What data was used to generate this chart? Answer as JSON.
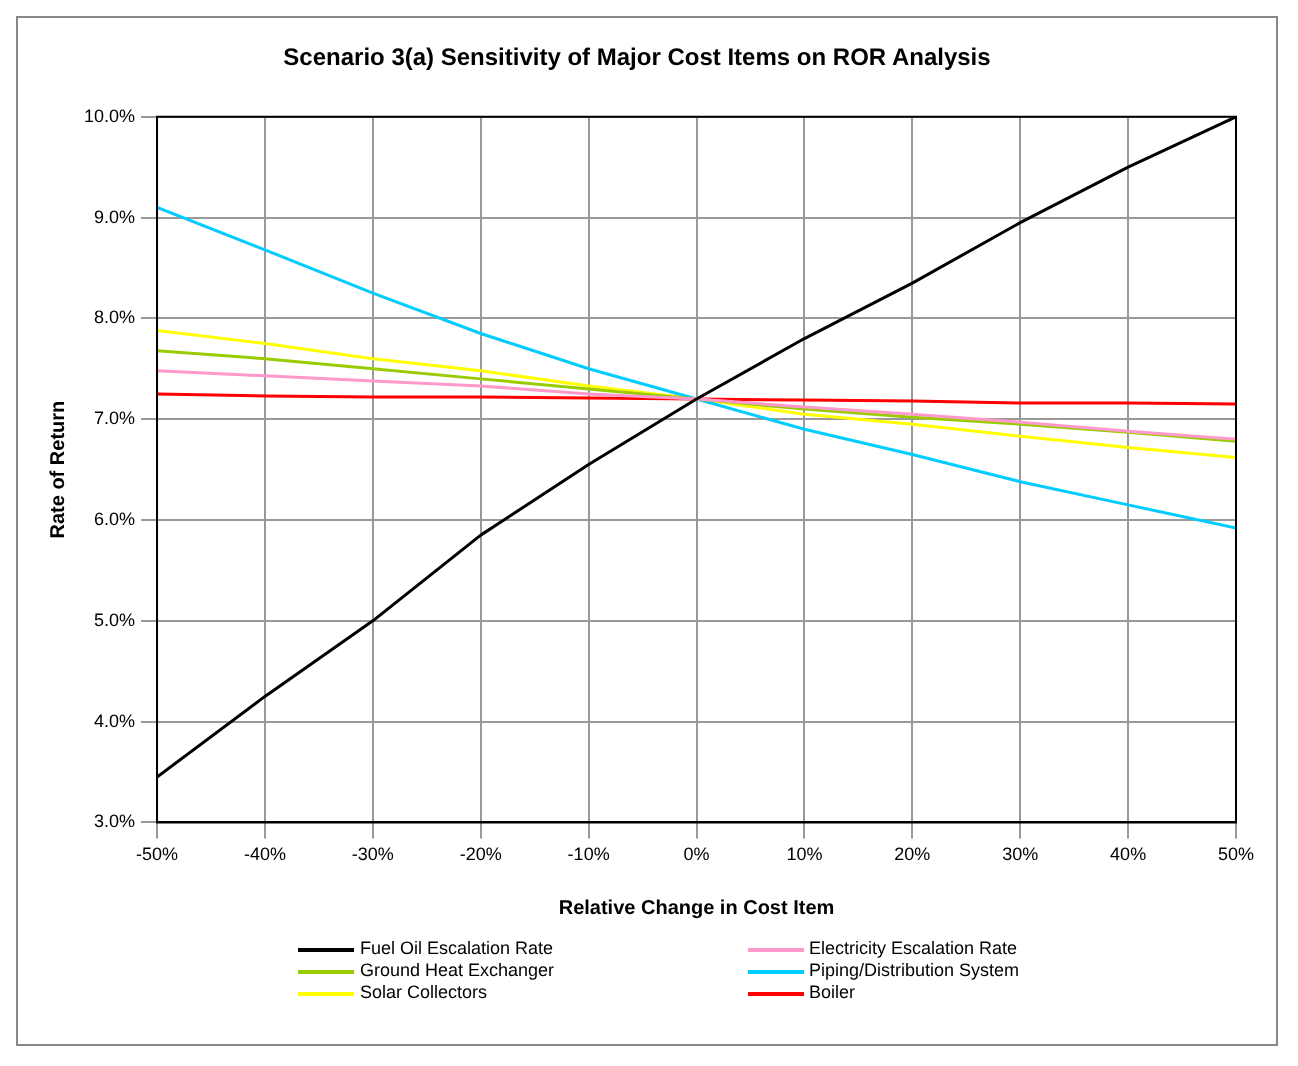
{
  "chart_data": {
    "type": "line",
    "title": "Scenario 3(a) Sensitivity of Major Cost Items on ROR Analysis",
    "xlabel": "Relative Change in Cost Item",
    "ylabel": "Rate of Return",
    "x": [
      -50,
      -40,
      -30,
      -20,
      -10,
      0,
      10,
      20,
      30,
      40,
      50
    ],
    "series": [
      {
        "name": "Fuel Oil Escalation Rate",
        "color": "#000000",
        "values": [
          3.45,
          4.25,
          5.0,
          5.85,
          6.55,
          7.2,
          7.8,
          8.35,
          8.95,
          9.5,
          10.0
        ]
      },
      {
        "name": "Electricity Escalation Rate",
        "color": "#ff99cc",
        "values": [
          7.48,
          7.43,
          7.38,
          7.33,
          7.25,
          7.2,
          7.12,
          7.05,
          6.97,
          6.88,
          6.8
        ]
      },
      {
        "name": "Ground Heat Exchanger",
        "color": "#99cc00",
        "values": [
          7.68,
          7.6,
          7.5,
          7.4,
          7.3,
          7.2,
          7.1,
          7.02,
          6.95,
          6.87,
          6.78
        ]
      },
      {
        "name": "Piping/Distribution System",
        "color": "#00ccff",
        "values": [
          9.1,
          8.68,
          8.25,
          7.85,
          7.5,
          7.2,
          6.9,
          6.65,
          6.38,
          6.15,
          5.92
        ]
      },
      {
        "name": "Solar Collectors",
        "color": "#ffff00",
        "values": [
          7.88,
          7.75,
          7.6,
          7.48,
          7.33,
          7.2,
          7.05,
          6.95,
          6.83,
          6.72,
          6.62
        ]
      },
      {
        "name": "Boiler",
        "color": "#ff0000",
        "values": [
          7.25,
          7.23,
          7.22,
          7.22,
          7.21,
          7.2,
          7.19,
          7.18,
          7.16,
          7.16,
          7.15
        ]
      }
    ],
    "xlim": [
      -50,
      50
    ],
    "xticks": [
      {
        "value": -50,
        "label": "-50%"
      },
      {
        "value": -40,
        "label": "-40%"
      },
      {
        "value": -30,
        "label": "-30%"
      },
      {
        "value": -20,
        "label": "-20%"
      },
      {
        "value": -10,
        "label": "-10%"
      },
      {
        "value": 0,
        "label": "0%"
      },
      {
        "value": 10,
        "label": "10%"
      },
      {
        "value": 20,
        "label": "20%"
      },
      {
        "value": 30,
        "label": "30%"
      },
      {
        "value": 40,
        "label": "40%"
      },
      {
        "value": 50,
        "label": "50%"
      }
    ],
    "ylim": [
      3,
      10
    ],
    "yticks": [
      {
        "value": 3,
        "label": "3.0%"
      },
      {
        "value": 4,
        "label": "4.0%"
      },
      {
        "value": 5,
        "label": "5.0%"
      },
      {
        "value": 6,
        "label": "6.0%"
      },
      {
        "value": 7,
        "label": "7.0%"
      },
      {
        "value": 8,
        "label": "8.0%"
      },
      {
        "value": 9,
        "label": "9.0%"
      },
      {
        "value": 10,
        "label": "10.0%"
      }
    ],
    "grid": true,
    "legend": "bottom",
    "marker": "none",
    "line_style": "solid"
  }
}
